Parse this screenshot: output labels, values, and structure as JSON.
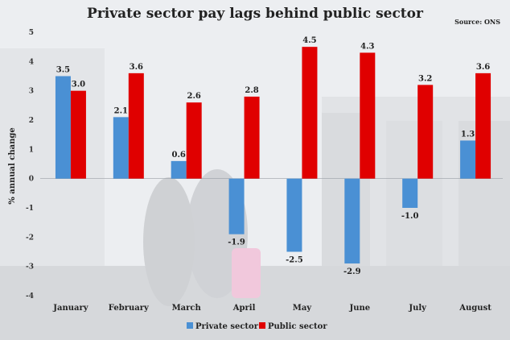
{
  "chart_data": {
    "type": "bar",
    "title": "Private sector pay lags behind public sector",
    "source": "Source: ONS",
    "ylabel": "% annual change",
    "xlabel": "",
    "ylim": [
      -4,
      5
    ],
    "yticks": [
      5,
      4,
      3,
      2,
      1,
      0,
      -1,
      -2,
      -3,
      -4
    ],
    "grid": false,
    "legend_position": "bottom",
    "categories": [
      "January",
      "February",
      "March",
      "April",
      "May",
      "June",
      "July",
      "August"
    ],
    "series": [
      {
        "name": "Private sector",
        "color": "#4a90d4",
        "values": [
          3.5,
          2.1,
          0.6,
          -1.9,
          -2.5,
          -2.9,
          -1.0,
          1.3
        ],
        "labels": [
          "3.5",
          "2.1",
          "0.6",
          "-1.9",
          "-2.5",
          "-2.9",
          "-1.0",
          "1.3"
        ]
      },
      {
        "name": "Public sector",
        "color": "#e00000",
        "values": [
          3.0,
          3.6,
          2.6,
          2.8,
          4.5,
          4.3,
          3.2,
          3.6
        ],
        "labels": [
          "3.0",
          "3.6",
          "2.6",
          "2.8",
          "4.5",
          "4.3",
          "3.2",
          "3.6"
        ]
      }
    ]
  }
}
